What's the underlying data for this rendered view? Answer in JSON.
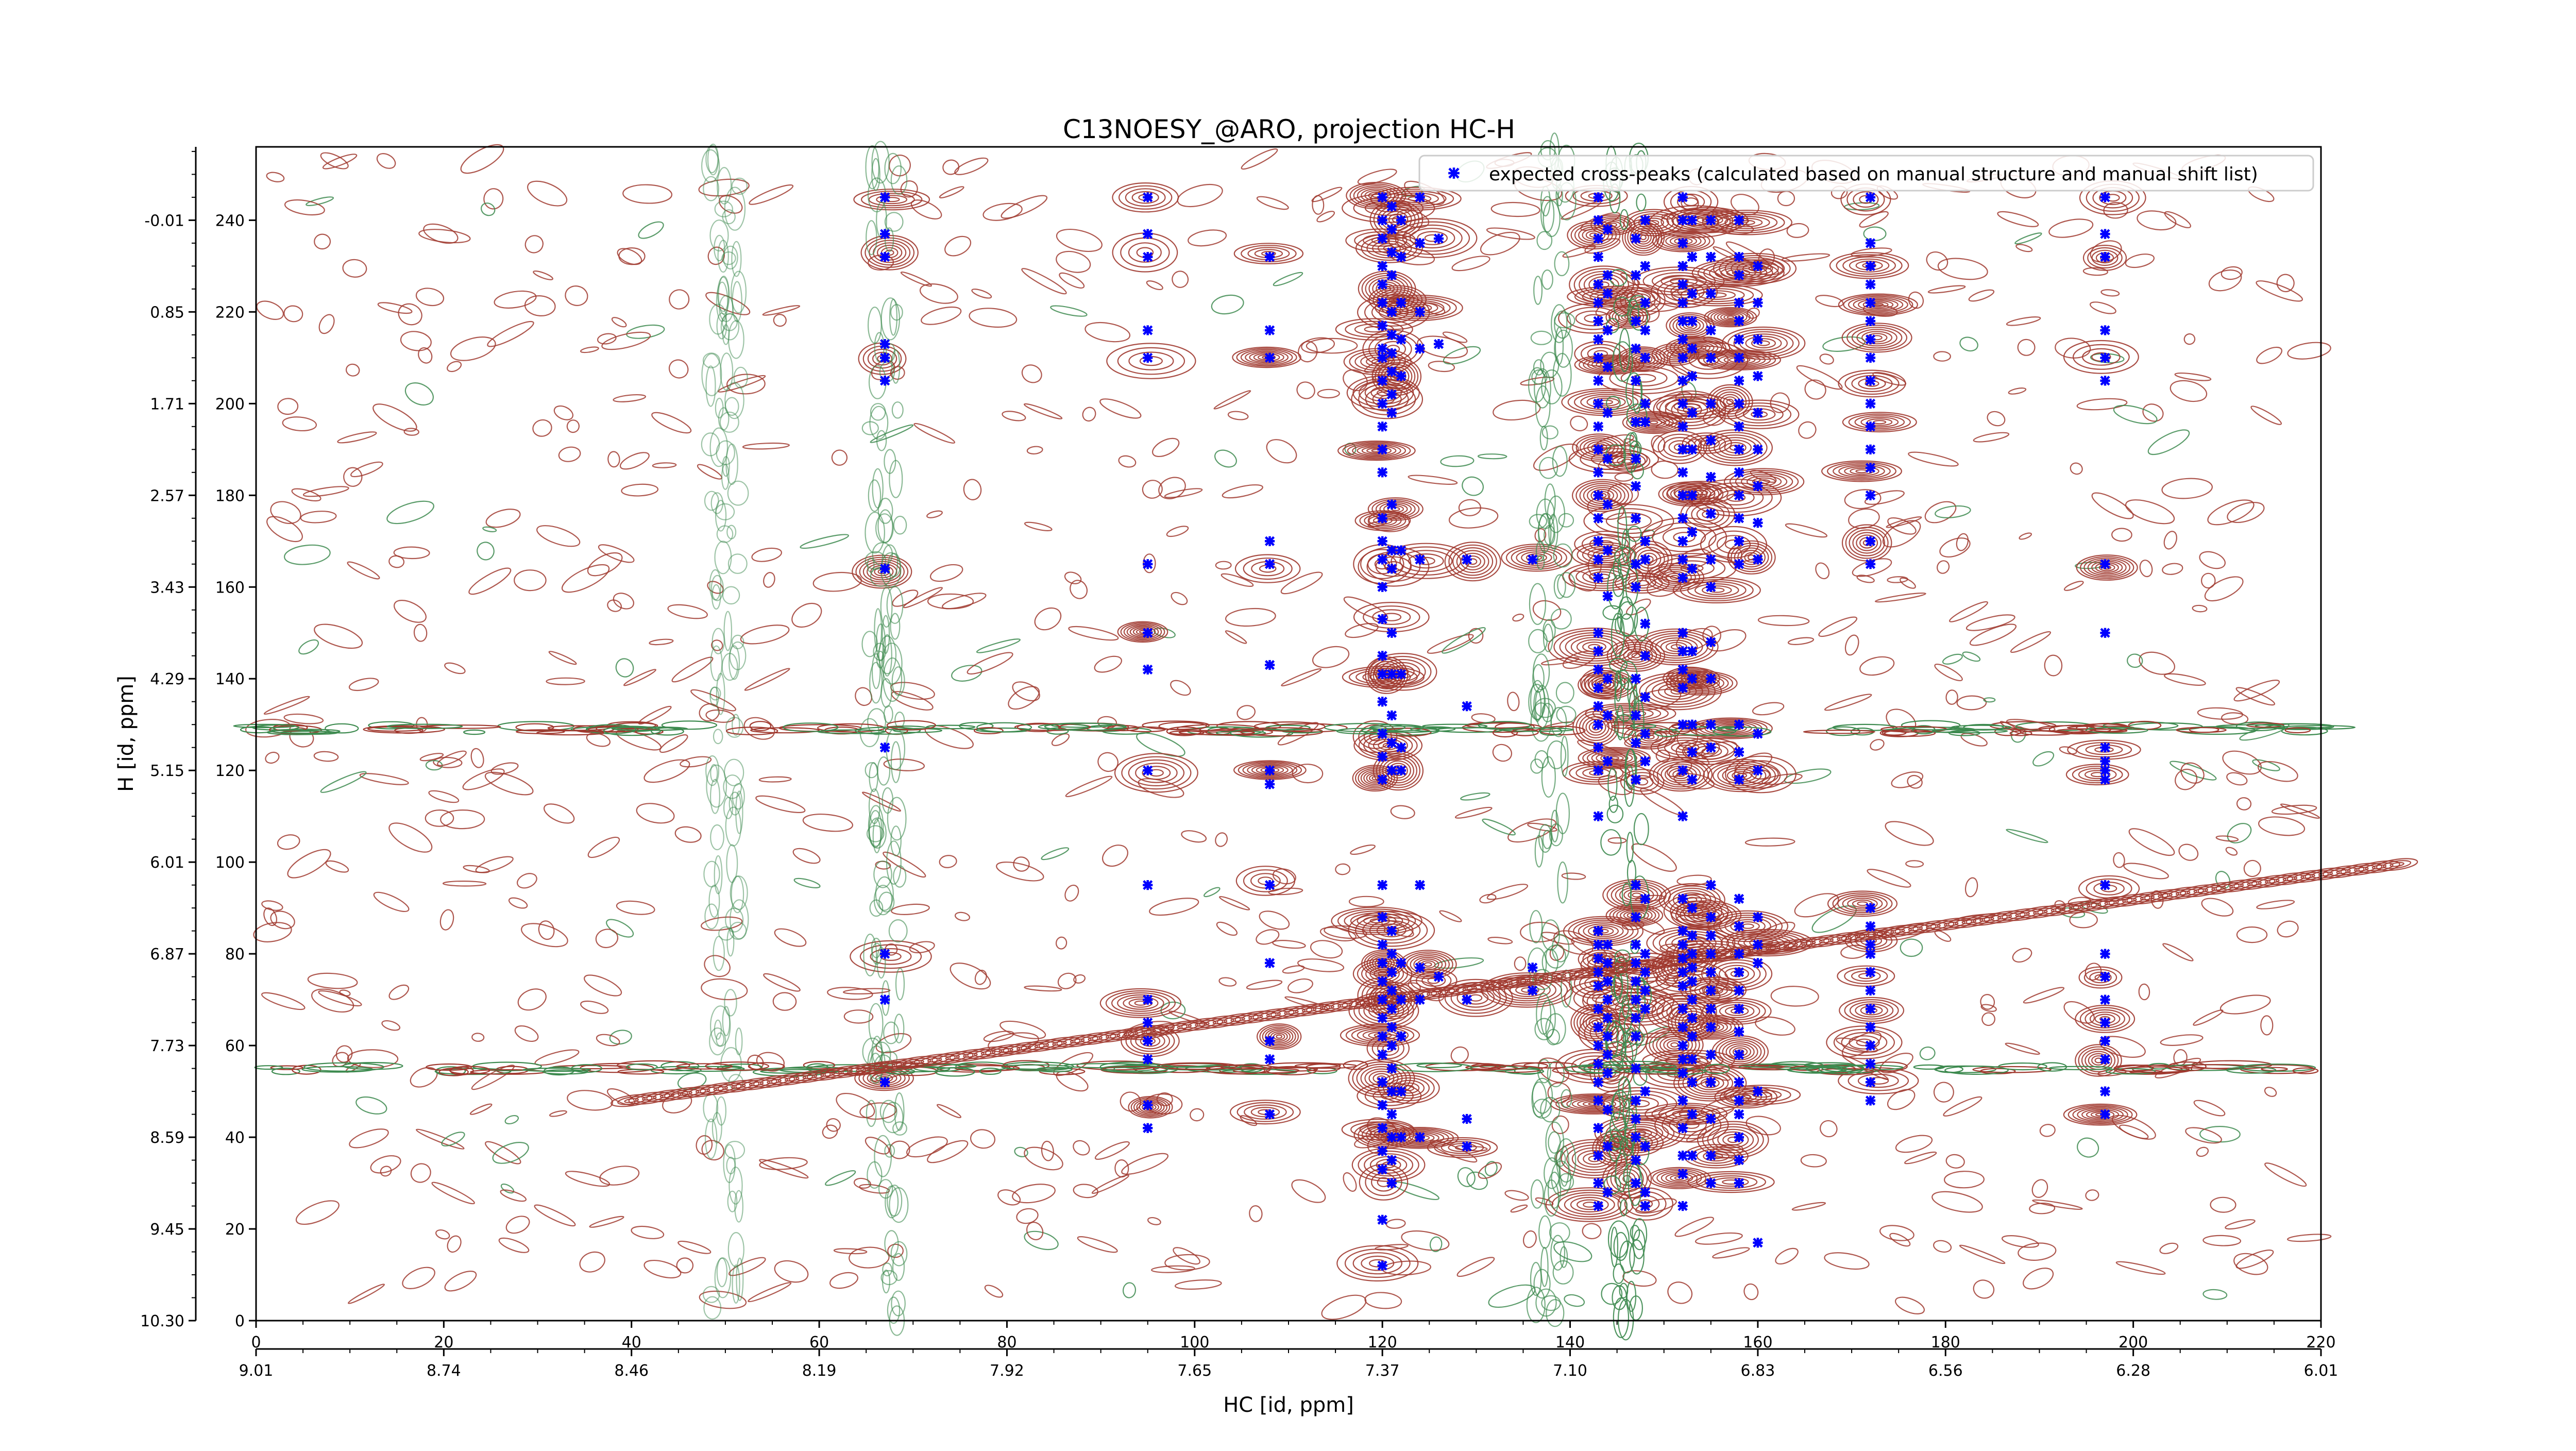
{
  "chart_data": {
    "type": "scatter",
    "title": "C13NOESY_@ARO, projection HC-H",
    "xlabel": "HC [id, ppm]",
    "ylabel": "H [id, ppm]",
    "xlim": [
      0,
      220
    ],
    "ylim": [
      0,
      256
    ],
    "x_ticks": [
      0,
      20,
      40,
      60,
      80,
      100,
      120,
      140,
      160,
      180,
      200,
      220
    ],
    "x_ppm_ticks": [
      "9.01",
      "8.74",
      "8.46",
      "8.19",
      "7.92",
      "7.65",
      "7.37",
      "7.10",
      "6.83",
      "6.56",
      "6.28",
      "6.01"
    ],
    "y_ticks": [
      0,
      20,
      40,
      60,
      80,
      100,
      120,
      140,
      160,
      180,
      200,
      220,
      240
    ],
    "y_ppm_ticks": [
      {
        "y": 0,
        "label": "10.30"
      },
      {
        "y": 20,
        "label": "9.45"
      },
      {
        "y": 40,
        "label": "8.59"
      },
      {
        "y": 60,
        "label": "7.73"
      },
      {
        "y": 80,
        "label": "6.87"
      },
      {
        "y": 100,
        "label": "6.01"
      },
      {
        "y": 120,
        "label": "5.15"
      },
      {
        "y": 140,
        "label": "4.29"
      },
      {
        "y": 160,
        "label": "3.43"
      },
      {
        "y": 180,
        "label": "2.57"
      },
      {
        "y": 200,
        "label": "1.71"
      },
      {
        "y": 220,
        "label": "0.85"
      },
      {
        "y": 240,
        "label": "-0.01"
      }
    ],
    "legend": {
      "position": "top-right",
      "entries": [
        {
          "label": "expected cross-peaks (calculated based on manual structure and manual shift list)",
          "color": "#0000ff",
          "marker": "x"
        }
      ]
    },
    "colors": {
      "positive_contour": "#a0392f",
      "negative_contour": "#3d8a4f",
      "peaks": "#0000ff"
    },
    "grid": false,
    "series": [
      {
        "name": "expected cross-peaks (calculated based on manual structure and manual shift list)",
        "columns": [
          {
            "x": 67,
            "y": [
              245,
              237,
              232,
              213,
              210,
              205,
              164,
              125,
              80,
              70,
              52
            ]
          },
          {
            "x": 95,
            "y": [
              245,
              237,
              232,
              216,
              210,
              165,
              150,
              142,
              120,
              95,
              70,
              65,
              61,
              57,
              47,
              42
            ]
          },
          {
            "x": 108,
            "y": [
              232,
              216,
              210,
              170,
              165,
              143,
              120,
              117,
              95,
              78,
              61,
              57,
              45
            ]
          },
          {
            "x": 120,
            "y": [
              245,
              240,
              236,
              230,
              226,
              222,
              217,
              212,
              210,
              205,
              200,
              195,
              190,
              185,
              175,
              170,
              166,
              160,
              153,
              145,
              141,
              135,
              128,
              123,
              118,
              95,
              88,
              82,
              78,
              74,
              70,
              66,
              62,
              58,
              52,
              47,
              42,
              37,
              33,
              22,
              12
            ]
          },
          {
            "x": 121,
            "y": [
              243,
              238,
              233,
              228,
              220,
              215,
              211,
              207,
              202,
              198,
              178,
              168,
              164,
              150,
              141,
              132,
              126,
              120,
              85,
              80,
              76,
              72,
              68,
              64,
              60,
              55,
              50,
              45,
              40,
              35,
              30
            ]
          },
          {
            "x": 122,
            "y": [
              240,
              232,
              222,
              214,
              206,
              168,
              141,
              125,
              120,
              78,
              70,
              62,
              50,
              40
            ]
          },
          {
            "x": 124,
            "y": [
              245,
              235,
              220,
              212,
              166,
              95,
              77,
              70,
              40
            ]
          },
          {
            "x": 126,
            "y": [
              236,
              213,
              75
            ]
          },
          {
            "x": 129,
            "y": [
              166,
              134,
              70,
              44,
              38
            ]
          },
          {
            "x": 136,
            "y": [
              166,
              77,
              72
            ]
          },
          {
            "x": 143,
            "y": [
              245,
              240,
              236,
              232,
              226,
              222,
              218,
              214,
              210,
              205,
              200,
              195,
              190,
              185,
              180,
              175,
              170,
              166,
              162,
              150,
              146,
              142,
              138,
              134,
              130,
              125,
              120,
              110,
              85,
              82,
              79,
              76,
              73,
              68,
              64,
              60,
              56,
              52,
              48,
              42,
              36,
              30,
              25
            ]
          },
          {
            "x": 144,
            "y": [
              238,
              228,
              224,
              216,
              208,
              198,
              188,
              178,
              168,
              158,
              140,
              132,
              122,
              82,
              78,
              74,
              70,
              66,
              62,
              58,
              54,
              46,
              38,
              28
            ]
          },
          {
            "x": 147,
            "y": [
              236,
              228,
              218,
              212,
              205,
              196,
              188,
              182,
              175,
              165,
              160,
              140,
              132,
              126,
              118,
              95,
              88,
              82,
              78,
              74,
              70,
              66,
              62,
              55,
              48,
              44,
              40,
              35,
              30
            ]
          },
          {
            "x": 148,
            "y": [
              240,
              230,
              222,
              216,
              210,
              200,
              196,
              170,
              166,
              152,
              145,
              136,
              128,
              122,
              92,
              80,
              76,
              72,
              68,
              50,
              38,
              28,
              25
            ]
          },
          {
            "x": 152,
            "y": [
              245,
              240,
              235,
              230,
              226,
              222,
              218,
              214,
              210,
              205,
              200,
              195,
              190,
              185,
              180,
              175,
              170,
              166,
              162,
              150,
              146,
              142,
              138,
              130,
              120,
              110,
              92,
              85,
              82,
              79,
              76,
              73,
              68,
              64,
              60,
              57,
              54,
              48,
              42,
              36,
              32,
              25
            ]
          },
          {
            "x": 153,
            "y": [
              240,
              232,
              224,
              218,
              212,
              206,
              198,
              190,
              180,
              172,
              164,
              146,
              140,
              130,
              124,
              118,
              90,
              84,
              80,
              77,
              74,
              70,
              66,
              62,
              57,
              52,
              45,
              36
            ]
          },
          {
            "x": 155,
            "y": [
              240,
              232,
              224,
              216,
              210,
              200,
              192,
              184,
              176,
              166,
              160,
              148,
              140,
              130,
              125,
              95,
              88,
              84,
              80,
              76,
              72,
              68,
              64,
              58,
              52,
              44,
              36,
              30
            ]
          },
          {
            "x": 158,
            "y": [
              240,
              232,
              228,
              222,
              218,
              214,
              210,
              205,
              200,
              195,
              190,
              185,
              180,
              175,
              170,
              165,
              130,
              124,
              118,
              92,
              86,
              80,
              76,
              72,
              68,
              63,
              58,
              52,
              48,
              45,
              40,
              35,
              30
            ]
          },
          {
            "x": 160,
            "y": [
              230,
              222,
              214,
              206,
              198,
              190,
              182,
              174,
              166,
              128,
              120,
              88,
              82,
              78,
              50,
              17
            ]
          },
          {
            "x": 172,
            "y": [
              245,
              235,
              230,
              226,
              222,
              218,
              214,
              210,
              205,
              200,
              195,
              190,
              186,
              180,
              170,
              165,
              90,
              86,
              82,
              80,
              76,
              72,
              68,
              64,
              60,
              56,
              52,
              48
            ]
          },
          {
            "x": 197,
            "y": [
              245,
              237,
              232,
              216,
              210,
              205,
              165,
              150,
              125,
              122,
              120,
              118,
              95,
              80,
              75,
              70,
              65,
              61,
              57,
              50,
              45
            ]
          }
        ]
      }
    ]
  }
}
